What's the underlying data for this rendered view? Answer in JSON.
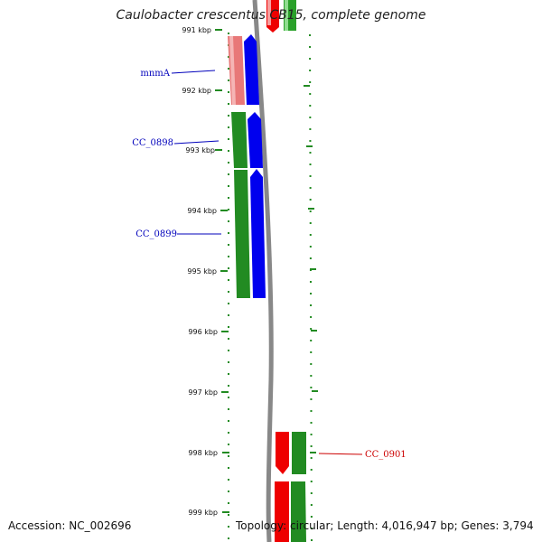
{
  "title": "Caulobacter crescentus CB15, complete genome",
  "footer": {
    "accession": "Accession: NC_002696",
    "summary": "Topology: circular; Length: 4,016,947 bp; Genes: 3,794"
  },
  "kbp_labels": [
    "991 kbp",
    "992 kbp",
    "993 kbp",
    "994 kbp",
    "995 kbp",
    "996 kbp",
    "997 kbp",
    "998 kbp",
    "999 kbp"
  ],
  "gene_labels": {
    "mnmA": "mnmA",
    "cc0898": "CC_0898",
    "cc0899": "CC_0899",
    "cc0901": "CC_0901"
  },
  "colors": {
    "cds_fwd": "#0000ee",
    "gene_fwd": "#228b22",
    "cds_rev": "#ee0000",
    "gene_rev": "#e88080",
    "backbone": "#888888",
    "tick": "#228b22"
  }
}
